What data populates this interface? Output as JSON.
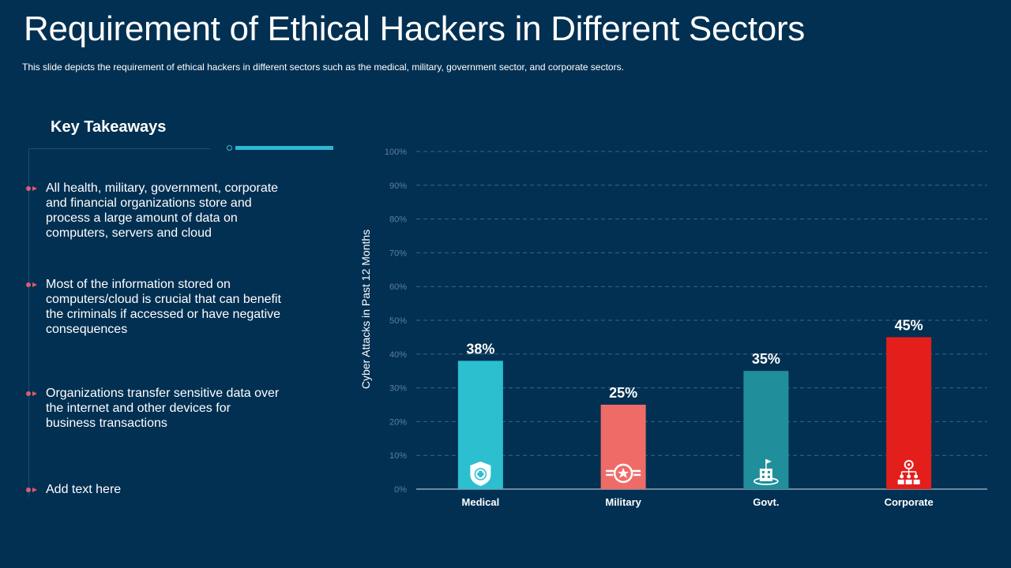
{
  "slide": {
    "title": "Requirement of Ethical Hackers in Different Sectors",
    "subtitle": "This slide depicts the requirement  of ethical hackers in different  sectors such as the medical, military, government  sector, and corporate sectors."
  },
  "takeaways": {
    "heading": "Key Takeaways",
    "items": [
      "All health, military, government, corporate and financial organizations store and process a large amount of data on computers,  servers and cloud",
      "Most of the information stored on computers/cloud  is crucial that can benefit the criminals if accessed or have negative consequences",
      "Organizations transfer sensitive data over the internet and other devices for business transactions",
      "Add text here"
    ],
    "marker_color": "#e05a70"
  },
  "chart_data": {
    "type": "bar",
    "categories": [
      "Medical",
      "Military",
      "Govt.",
      "Corporate"
    ],
    "values": [
      38,
      25,
      35,
      45
    ],
    "data_labels": [
      "38%",
      "25%",
      "35%",
      "45%"
    ],
    "colors": [
      "#2bbfd0",
      "#ef6b67",
      "#208f9b",
      "#e41e1a"
    ],
    "icons": [
      "shield-icon",
      "military-emblem-icon",
      "government-building-icon",
      "corporate-network-icon"
    ],
    "ylabel": "Cyber Attacks in Past 12 Months",
    "ylim": [
      0,
      100
    ],
    "yticks": [
      0,
      10,
      20,
      30,
      40,
      50,
      60,
      70,
      80,
      90,
      100
    ],
    "ytick_labels": [
      "0%",
      "10%",
      "20%",
      "30%",
      "40%",
      "50%",
      "60%",
      "70%",
      "80%",
      "90%",
      "100%"
    ],
    "grid": true
  }
}
